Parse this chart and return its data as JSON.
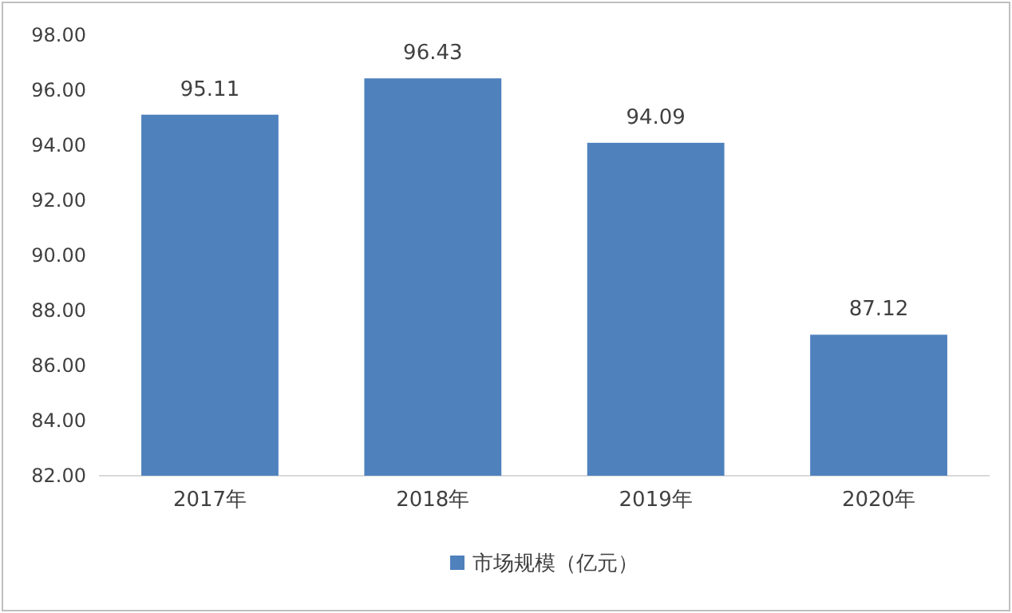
{
  "chart_data": {
    "type": "bar",
    "categories": [
      "2017年",
      "2018年",
      "2019年",
      "2020年"
    ],
    "series": [
      {
        "name": "市场规模（亿元）",
        "color": "#4f81bd",
        "values": [
          95.11,
          96.43,
          94.09,
          87.12
        ]
      }
    ],
    "ylim": [
      82,
      98
    ],
    "yticks": [
      {
        "value": 82,
        "label": "82.00"
      },
      {
        "value": 84,
        "label": "84.00"
      },
      {
        "value": 86,
        "label": "86.00"
      },
      {
        "value": 88,
        "label": "88.00"
      },
      {
        "value": 90,
        "label": "90.00"
      },
      {
        "value": 92,
        "label": "92.00"
      },
      {
        "value": 94,
        "label": "94.00"
      },
      {
        "value": 96,
        "label": "96.00"
      },
      {
        "value": 98,
        "label": "98.00"
      }
    ],
    "data_labels": true,
    "legend": "bottom",
    "grid": false
  }
}
